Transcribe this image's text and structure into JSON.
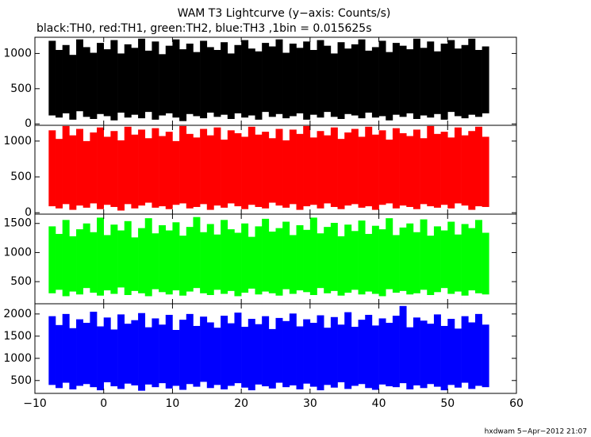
{
  "chart_data": {
    "type": "band",
    "title": "WAM T3 Lightcurve (y−axis: Counts/s)",
    "subtitle": "black:TH0, red:TH1, green:TH2, blue:TH3 ,1bin = 0.015625s",
    "annotation": "hxdwam  5−Apr−2012 21:07",
    "xlim": [
      -10,
      60
    ],
    "xticks": [
      {
        "value": -10,
        "label": "−10"
      },
      0,
      10,
      20,
      30,
      40,
      50,
      60
    ],
    "x": [
      -8,
      -7,
      -6,
      -5,
      -4,
      -3,
      -2,
      -1,
      0,
      1,
      2,
      3,
      4,
      5,
      6,
      7,
      8,
      9,
      10,
      11,
      12,
      13,
      14,
      15,
      16,
      17,
      18,
      19,
      20,
      21,
      22,
      23,
      24,
      25,
      26,
      27,
      28,
      29,
      30,
      31,
      32,
      33,
      34,
      35,
      36,
      37,
      38,
      39,
      40,
      41,
      42,
      43,
      44,
      45,
      46,
      47,
      48,
      49,
      50,
      51,
      52,
      53,
      54,
      55
    ],
    "panels": [
      {
        "color": "#000000",
        "ylim": [
          -20,
          1230
        ],
        "yticks": [
          0,
          500,
          1000
        ],
        "high": [
          1180,
          1050,
          1120,
          980,
          1200,
          1090,
          1010,
          1150,
          1060,
          1190,
          1000,
          1130,
          1080,
          1210,
          1040,
          1170,
          990,
          1110,
          1200,
          1060,
          1140,
          1020,
          1180,
          1090,
          1050,
          1160,
          1000,
          1120,
          1190,
          1070,
          1030,
          1150,
          1100,
          1200,
          1010,
          1140,
          1080,
          1170,
          1050,
          1190,
          1110,
          1000,
          1160,
          1070,
          1130,
          1200,
          1040,
          1090,
          1180,
          1020,
          1150,
          1110,
          1060,
          1210,
          1080,
          1170,
          1030,
          1140,
          1190,
          1070,
          1120,
          1210,
          1050,
          1100
        ],
        "low": [
          120,
          90,
          150,
          60,
          180,
          100,
          70,
          140,
          110,
          50,
          160,
          90,
          130,
          80,
          170,
          60,
          120,
          150,
          90,
          40,
          140,
          110,
          80,
          160,
          100,
          130,
          70,
          150,
          90,
          120,
          60,
          170,
          100,
          140,
          80,
          110,
          150,
          60,
          130,
          90,
          170,
          100,
          70,
          140,
          120,
          80,
          160,
          90,
          110,
          50,
          130,
          100,
          150,
          70,
          120,
          90,
          140,
          60,
          170,
          110,
          80,
          130,
          100,
          150
        ]
      },
      {
        "color": "#ff0000",
        "ylim": [
          -20,
          1220
        ],
        "yticks": [
          0,
          500,
          1000
        ],
        "high": [
          1150,
          1030,
          1210,
          1080,
          1170,
          1000,
          1120,
          1190,
          1060,
          1140,
          1010,
          1200,
          1090,
          1160,
          1040,
          1180,
          1070,
          1130,
          1000,
          1210,
          1100,
          1050,
          1170,
          1080,
          1190,
          1020,
          1150,
          1110,
          1060,
          1200,
          1090,
          1130,
          1040,
          1170,
          1010,
          1160,
          1100,
          1210,
          1050,
          1140,
          1080,
          1190,
          1030,
          1120,
          1170,
          1060,
          1200,
          1090,
          1150,
          1020,
          1180,
          1110,
          1070,
          1160,
          1040,
          1210,
          1100,
          1130,
          1050,
          1190,
          1080,
          1140,
          1200,
          1060
        ],
        "low": [
          90,
          60,
          120,
          40,
          100,
          70,
          130,
          50,
          110,
          80,
          30,
          120,
          60,
          100,
          140,
          70,
          90,
          50,
          110,
          130,
          60,
          80,
          120,
          40,
          100,
          70,
          130,
          90,
          50,
          110,
          80,
          60,
          140,
          100,
          70,
          120,
          40,
          90,
          110,
          60,
          130,
          80,
          50,
          100,
          120,
          70,
          90,
          40,
          110,
          130,
          60,
          100,
          80,
          50,
          120,
          90,
          70,
          110,
          60,
          130,
          100,
          40,
          90,
          80
        ]
      },
      {
        "color": "#00ff00",
        "ylim": [
          120,
          1660
        ],
        "yticks": [
          500,
          1000,
          1500
        ],
        "high": [
          1450,
          1320,
          1560,
          1280,
          1400,
          1500,
          1350,
          1600,
          1300,
          1480,
          1380,
          1540,
          1260,
          1420,
          1590,
          1330,
          1470,
          1380,
          1520,
          1290,
          1440,
          1610,
          1350,
          1490,
          1310,
          1560,
          1400,
          1340,
          1500,
          1270,
          1450,
          1580,
          1360,
          1420,
          1530,
          1300,
          1470,
          1390,
          1600,
          1330,
          1440,
          1510,
          1280,
          1480,
          1370,
          1550,
          1320,
          1460,
          1400,
          1590,
          1300,
          1430,
          1500,
          1350,
          1570,
          1290,
          1450,
          1380,
          1530,
          1310,
          1490,
          1420,
          1560,
          1340
        ],
        "low": [
          300,
          360,
          250,
          330,
          280,
          390,
          310,
          260,
          350,
          290,
          400,
          270,
          340,
          300,
          250,
          370,
          320,
          280,
          350,
          260,
          330,
          390,
          300,
          270,
          360,
          290,
          340,
          250,
          310,
          380,
          280,
          330,
          300,
          260,
          370,
          290,
          350,
          320,
          270,
          390,
          300,
          340,
          260,
          310,
          360,
          280,
          330,
          290,
          250,
          370,
          310,
          340,
          280,
          300,
          360,
          270,
          320,
          390,
          290,
          330,
          260,
          350,
          300,
          280
        ]
      },
      {
        "color": "#0000ff",
        "ylim": [
          210,
          2230
        ],
        "yticks": [
          500,
          1000,
          1500,
          2000
        ],
        "high": [
          1950,
          1750,
          2000,
          1680,
          1880,
          1800,
          2050,
          1720,
          1920,
          1650,
          1990,
          1780,
          1860,
          2020,
          1700,
          1900,
          1760,
          1980,
          1640,
          1870,
          2000,
          1730,
          1940,
          1810,
          1690,
          1960,
          1790,
          2030,
          1710,
          1890,
          1770,
          1950,
          1660,
          1910,
          1840,
          2010,
          1720,
          1880,
          1800,
          1970,
          1690,
          1930,
          1760,
          2040,
          1710,
          1870,
          1980,
          1740,
          1900,
          1800,
          1960,
          2180,
          1700,
          1920,
          1850,
          1780,
          1990,
          1730,
          1890,
          1670,
          1950,
          1810,
          2000,
          1760
        ],
        "low": [
          400,
          330,
          450,
          300,
          380,
          420,
          350,
          280,
          460,
          370,
          310,
          430,
          390,
          270,
          410,
          350,
          440,
          320,
          380,
          290,
          420,
          360,
          470,
          330,
          400,
          300,
          380,
          440,
          340,
          280,
          410,
          370,
          320,
          450,
          350,
          390,
          300,
          430,
          360,
          280,
          400,
          340,
          460,
          310,
          380,
          420,
          330,
          290,
          410,
          370,
          350,
          440,
          300,
          390,
          330,
          420,
          360,
          280,
          400,
          340,
          450,
          310,
          380,
          350
        ]
      }
    ]
  }
}
